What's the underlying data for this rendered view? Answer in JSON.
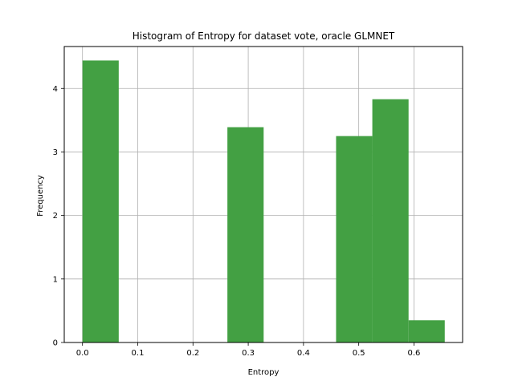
{
  "chart_data": {
    "type": "bar",
    "title": "Histogram of Entropy for dataset vote, oracle GLMNET",
    "xlabel": "Entropy",
    "ylabel": "Frequency",
    "xlim": [
      -0.033,
      0.688
    ],
    "ylim": [
      0,
      4.66
    ],
    "grid": true,
    "bar_color": "#43a043",
    "bins": [
      {
        "x0": 0.0,
        "x1": 0.0656,
        "value": 4.44
      },
      {
        "x0": 0.0656,
        "x1": 0.1311,
        "value": 0
      },
      {
        "x0": 0.1311,
        "x1": 0.1967,
        "value": 0
      },
      {
        "x0": 0.1967,
        "x1": 0.2623,
        "value": 0
      },
      {
        "x0": 0.2623,
        "x1": 0.3279,
        "value": 3.39
      },
      {
        "x0": 0.3279,
        "x1": 0.3934,
        "value": 0
      },
      {
        "x0": 0.3934,
        "x1": 0.459,
        "value": 0
      },
      {
        "x0": 0.459,
        "x1": 0.5246,
        "value": 3.25
      },
      {
        "x0": 0.5246,
        "x1": 0.5902,
        "value": 3.83
      },
      {
        "x0": 0.5902,
        "x1": 0.6557,
        "value": 0.35
      }
    ],
    "xticks": [
      0.0,
      0.1,
      0.2,
      0.3,
      0.4,
      0.5,
      0.6
    ],
    "xtick_labels": [
      "0.0",
      "0.1",
      "0.2",
      "0.3",
      "0.4",
      "0.5",
      "0.6"
    ],
    "yticks": [
      0,
      1,
      2,
      3,
      4
    ],
    "ytick_labels": [
      "0",
      "1",
      "2",
      "3",
      "4"
    ]
  }
}
